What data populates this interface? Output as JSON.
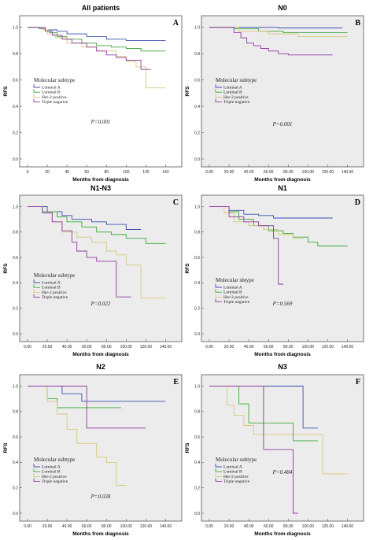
{
  "chart_data": [
    {
      "type": "line",
      "title": "All patients",
      "letter": "A",
      "xlabel": "Months from diagnosis",
      "ylabel": "RFS",
      "xticks": [
        "0",
        "20",
        "40",
        "60",
        "80",
        "100",
        "120",
        "140"
      ],
      "xlim": [
        0,
        150
      ],
      "yticks": [
        "0.0",
        "0.2",
        "0.4",
        "0.6",
        "0.8",
        "1.0"
      ],
      "ylim": [
        0,
        1.04
      ],
      "legend_title": "Molecular subtype",
      "p_label": "P=0.001",
      "series": [
        {
          "name": "Luminal A",
          "color": "#3b50b0",
          "x": [
            0,
            12,
            18,
            30,
            40,
            60,
            80,
            100,
            140
          ],
          "y": [
            1,
            0.99,
            0.98,
            0.97,
            0.95,
            0.93,
            0.91,
            0.9,
            0.9
          ]
        },
        {
          "name": "Luminal B",
          "color": "#3aa83a",
          "x": [
            0,
            15,
            22,
            30,
            40,
            55,
            70,
            85,
            100,
            115,
            140
          ],
          "y": [
            1,
            0.98,
            0.96,
            0.93,
            0.91,
            0.88,
            0.86,
            0.85,
            0.84,
            0.82,
            0.82
          ]
        },
        {
          "name": "Her-2 positive",
          "color": "#d6c978",
          "x": [
            0,
            15,
            20,
            28,
            40,
            55,
            70,
            90,
            100,
            110,
            120,
            140
          ],
          "y": [
            1,
            0.98,
            0.95,
            0.92,
            0.88,
            0.85,
            0.82,
            0.78,
            0.74,
            0.7,
            0.54,
            0.54
          ]
        },
        {
          "name": "Triple negative",
          "color": "#8e3a9e",
          "x": [
            0,
            18,
            25,
            35,
            45,
            60,
            70,
            80,
            90,
            100,
            115,
            125
          ],
          "y": [
            1,
            0.97,
            0.94,
            0.91,
            0.88,
            0.85,
            0.82,
            0.79,
            0.77,
            0.75,
            0.68,
            0.68
          ]
        }
      ]
    },
    {
      "type": "line",
      "title": "N0",
      "letter": "B",
      "xlabel": "Months from diagnosis",
      "ylabel": "RFS",
      "xticks": [
        "0.00",
        "20.00",
        "40.00",
        "60.00",
        "80.00",
        "100.00",
        "120.00",
        "140.00"
      ],
      "xlim": [
        0,
        150
      ],
      "yticks": [
        "0.0",
        "0.2",
        "0.4",
        "0.6",
        "0.8",
        "1.0"
      ],
      "ylim": [
        0,
        1.04
      ],
      "legend_title": "Molecular subtype",
      "p_label": "P=0.001",
      "series": [
        {
          "name": "Luminal A",
          "color": "#3b50b0",
          "x": [
            0,
            70,
            135
          ],
          "y": [
            1,
            0.995,
            0.995
          ]
        },
        {
          "name": "Luminal B",
          "color": "#3aa83a",
          "x": [
            0,
            25,
            50,
            75,
            140
          ],
          "y": [
            1,
            0.99,
            0.97,
            0.96,
            0.96
          ]
        },
        {
          "name": "Her-2 positive",
          "color": "#d6c978",
          "x": [
            0,
            30,
            60,
            90,
            140
          ],
          "y": [
            1,
            0.97,
            0.95,
            0.93,
            0.93
          ]
        },
        {
          "name": "Triple negative",
          "color": "#8e3a9e",
          "x": [
            0,
            25,
            32,
            38,
            45,
            52,
            60,
            70,
            80,
            125
          ],
          "y": [
            1,
            0.96,
            0.92,
            0.88,
            0.86,
            0.84,
            0.82,
            0.8,
            0.79,
            0.79
          ]
        }
      ]
    },
    {
      "type": "line",
      "title": "N1-N3",
      "letter": "C",
      "xlabel": "Months from diagnosis",
      "ylabel": "RFS",
      "xticks": [
        "0.00",
        "20.00",
        "40.00",
        "60.00",
        "80.00",
        "100.00",
        "120.00",
        "140.00"
      ],
      "xlim": [
        0,
        150
      ],
      "yticks": [
        "0.0",
        "0.2",
        "0.4",
        "0.6",
        "0.8",
        "1.0"
      ],
      "ylim": [
        0,
        1.04
      ],
      "legend_title": "Molecular subtype",
      "p_label": "P=0.022",
      "series": [
        {
          "name": "Luminal A",
          "color": "#3b50b0",
          "x": [
            0,
            20,
            35,
            45,
            65,
            80,
            100,
            115
          ],
          "y": [
            1,
            0.96,
            0.93,
            0.9,
            0.88,
            0.86,
            0.82,
            0.82
          ]
        },
        {
          "name": "Luminal B",
          "color": "#3aa83a",
          "x": [
            0,
            15,
            30,
            40,
            55,
            70,
            85,
            100,
            120,
            140
          ],
          "y": [
            1,
            0.96,
            0.92,
            0.88,
            0.84,
            0.8,
            0.78,
            0.75,
            0.71,
            0.71
          ]
        },
        {
          "name": "Her-2 positive",
          "color": "#d6c978",
          "x": [
            0,
            15,
            25,
            35,
            50,
            65,
            80,
            90,
            100,
            115,
            140
          ],
          "y": [
            1,
            0.95,
            0.88,
            0.8,
            0.76,
            0.72,
            0.65,
            0.62,
            0.54,
            0.28,
            0.28
          ]
        },
        {
          "name": "Triple negative",
          "color": "#8e3a9e",
          "x": [
            0,
            15,
            25,
            35,
            45,
            50,
            60,
            70,
            90,
            105
          ],
          "y": [
            1,
            0.95,
            0.88,
            0.81,
            0.72,
            0.65,
            0.6,
            0.57,
            0.29,
            0.29
          ]
        }
      ]
    },
    {
      "type": "line",
      "title": "N1",
      "letter": "D",
      "xlabel": "Months from diagnosis",
      "ylabel": "RFS",
      "xticks": [
        "0.00",
        "20.00",
        "40.00",
        "60.00",
        "80.00",
        "100.00",
        "120.00",
        "140.00"
      ],
      "xlim": [
        0,
        150
      ],
      "yticks": [
        "0.0",
        "0.2",
        "0.4",
        "0.6",
        "0.8",
        "1.0"
      ],
      "ylim": [
        0,
        1.04
      ],
      "legend_title": "Molecular sbtype",
      "p_label": "P=0.569",
      "series": [
        {
          "name": "Luminal A",
          "color": "#3b50b0",
          "x": [
            0,
            20,
            35,
            50,
            65,
            125
          ],
          "y": [
            1,
            0.97,
            0.94,
            0.93,
            0.91,
            0.91
          ]
        },
        {
          "name": "Luminal B",
          "color": "#3aa83a",
          "x": [
            0,
            20,
            30,
            45,
            60,
            75,
            85,
            100,
            110,
            140
          ],
          "y": [
            1,
            0.96,
            0.9,
            0.85,
            0.81,
            0.79,
            0.76,
            0.72,
            0.69,
            0.69
          ]
        },
        {
          "name": "Her-2 positive",
          "color": "#d6c978",
          "x": [
            0,
            15,
            25,
            40,
            55,
            70,
            85,
            95
          ],
          "y": [
            1,
            0.95,
            0.88,
            0.85,
            0.82,
            0.78,
            0.75,
            0.75
          ]
        },
        {
          "name": "Triple negative",
          "color": "#8e3a9e",
          "x": [
            0,
            20,
            35,
            50,
            65,
            70,
            75
          ],
          "y": [
            1,
            0.92,
            0.88,
            0.85,
            0.75,
            0.39,
            0.39
          ]
        }
      ]
    },
    {
      "type": "line",
      "title": "N2",
      "letter": "E",
      "xlabel": "Months from diagnosis",
      "ylabel": "RFS",
      "xticks": [
        "0.00",
        "20.00",
        "40.00",
        "60.00",
        "80.00",
        "100.00",
        "120.00",
        "140.00"
      ],
      "xlim": [
        0,
        150
      ],
      "yticks": [
        "0.0",
        "0.2",
        "0.4",
        "0.6",
        "0.8",
        "1.0"
      ],
      "ylim": [
        0,
        1.04
      ],
      "legend_title": "Molecular subtype",
      "p_label": "P=0.038",
      "series": [
        {
          "name": "Luminal A",
          "color": "#3b50b0",
          "x": [
            0,
            35,
            55,
            140
          ],
          "y": [
            1,
            0.94,
            0.88,
            0.88
          ]
        },
        {
          "name": "Luminal B",
          "color": "#3aa83a",
          "x": [
            0,
            20,
            30,
            95
          ],
          "y": [
            1,
            0.9,
            0.83,
            0.83
          ]
        },
        {
          "name": "Her-2 positive",
          "color": "#d6c978",
          "x": [
            0,
            20,
            30,
            40,
            50,
            70,
            80,
            90,
            100
          ],
          "y": [
            1,
            0.88,
            0.78,
            0.66,
            0.55,
            0.44,
            0.4,
            0.22,
            0.22
          ]
        },
        {
          "name": "Triple negative",
          "color": "#8e3a9e",
          "x": [
            0,
            30,
            60,
            120
          ],
          "y": [
            1,
            1,
            0.67,
            0.67
          ]
        }
      ]
    },
    {
      "type": "line",
      "title": "N3",
      "letter": "F",
      "xlabel": "Months from diagnosis",
      "ylabel": "RFS",
      "xticks": [
        "0.00",
        "20.00",
        "40.00",
        "60.00",
        "80.00",
        "100.00",
        "120.00",
        "140.00"
      ],
      "xlim": [
        0,
        150
      ],
      "yticks": [
        "0.0",
        "0.2",
        "0.4",
        "0.6",
        "0.8",
        "1.0"
      ],
      "ylim": [
        0,
        1.04
      ],
      "legend_title": "Molecular subtype",
      "p_label": "P=0.484",
      "series": [
        {
          "name": "Luminal A",
          "color": "#3b50b0",
          "x": [
            0,
            90,
            95,
            110
          ],
          "y": [
            1,
            1,
            0.67,
            0.67
          ]
        },
        {
          "name": "Luminal B",
          "color": "#3aa83a",
          "x": [
            0,
            20,
            30,
            40,
            70,
            85,
            110
          ],
          "y": [
            1,
            1,
            0.86,
            0.71,
            0.71,
            0.57,
            0.57
          ]
        },
        {
          "name": "Her-2 positive",
          "color": "#d6c978",
          "x": [
            0,
            18,
            25,
            35,
            45,
            55,
            80,
            100,
            115,
            140
          ],
          "y": [
            1,
            0.85,
            0.77,
            0.69,
            0.62,
            0.62,
            0.62,
            0.62,
            0.31,
            0.31
          ]
        },
        {
          "name": "Triple negative",
          "color": "#8e3a9e",
          "x": [
            0,
            25,
            55,
            85,
            90
          ],
          "y": [
            1,
            1,
            0.5,
            0,
            0
          ]
        }
      ]
    }
  ]
}
